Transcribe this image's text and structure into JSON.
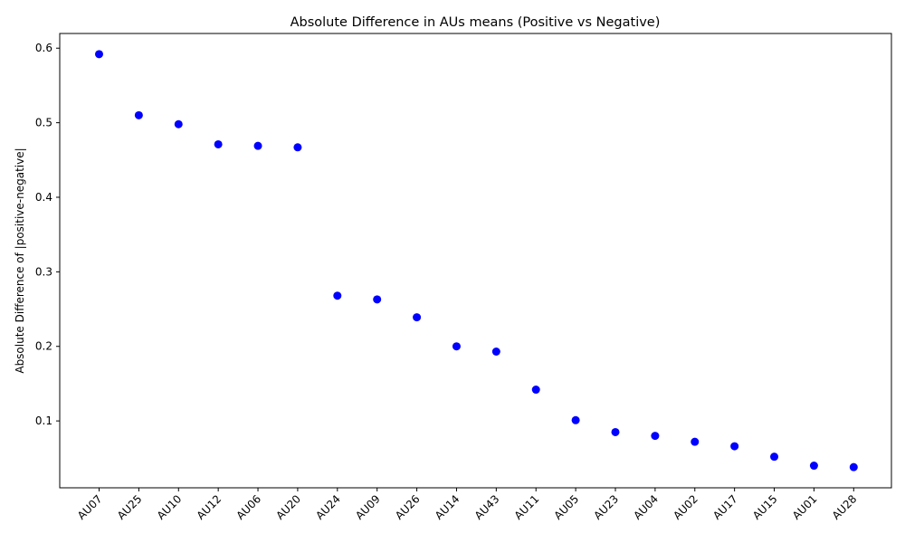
{
  "chart_data": {
    "type": "scatter",
    "title": "Absolute Difference in AUs means (Positive vs Negative)",
    "xlabel": "",
    "ylabel": "Absolute Difference of |positive-negative|",
    "categories": [
      "AU07",
      "AU25",
      "AU10",
      "AU12",
      "AU06",
      "AU20",
      "AU24",
      "AU09",
      "AU26",
      "AU14",
      "AU43",
      "AU11",
      "AU05",
      "AU23",
      "AU04",
      "AU02",
      "AU17",
      "AU15",
      "AU01",
      "AU28"
    ],
    "values": [
      0.592,
      0.51,
      0.498,
      0.471,
      0.469,
      0.467,
      0.268,
      0.263,
      0.239,
      0.2,
      0.193,
      0.142,
      0.101,
      0.085,
      0.08,
      0.072,
      0.066,
      0.052,
      0.04,
      0.038
    ],
    "yticks": [
      0.1,
      0.2,
      0.3,
      0.4,
      0.5,
      0.6
    ],
    "ytick_labels": [
      "0.1",
      "0.2",
      "0.3",
      "0.4",
      "0.5",
      "0.6"
    ],
    "ylim": [
      0.0103,
      0.6197
    ],
    "grid": false,
    "marker_color": "#0000ff"
  }
}
